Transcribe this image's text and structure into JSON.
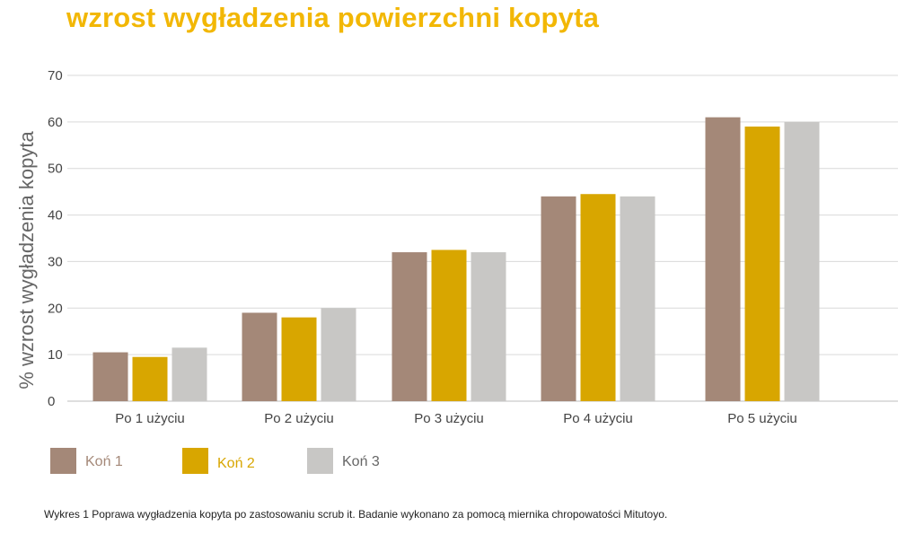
{
  "title": "wzrost wygładzenia powierzchni kopyta",
  "caption": "Wykres 1 Poprawa wygładzenia kopyta po zastosowaniu scrub it. Badanie wykonano za pomocą miernika chropowatości Mitutoyo.",
  "chart_data": {
    "type": "bar",
    "title": "wzrost wygładzenia powierzchni kopyta",
    "xlabel": "",
    "ylabel": "% wzrost wygładzenia kopyta",
    "ylim": [
      0,
      70
    ],
    "yticks": [
      0,
      10,
      20,
      30,
      40,
      50,
      60,
      70
    ],
    "grid": true,
    "legend_position": "bottom-left",
    "categories": [
      "Po 1 użyciu",
      "Po 2 użyciu",
      "Po 3 użyciu",
      "Po 4 użyciu",
      "Po 5 użyciu"
    ],
    "series": [
      {
        "name": "Koń 1",
        "color": "#a48878",
        "label_color": "#a48878",
        "values": [
          10.5,
          19,
          32,
          44,
          61
        ]
      },
      {
        "name": "Koń 2",
        "color": "#d8a600",
        "label_color": "#d8a600",
        "values": [
          9.5,
          18,
          32.5,
          44.5,
          59
        ]
      },
      {
        "name": "Koń 3",
        "color": "#c8c7c5",
        "label_color": "#666666",
        "values": [
          11.5,
          20,
          32,
          44,
          60
        ]
      }
    ]
  }
}
